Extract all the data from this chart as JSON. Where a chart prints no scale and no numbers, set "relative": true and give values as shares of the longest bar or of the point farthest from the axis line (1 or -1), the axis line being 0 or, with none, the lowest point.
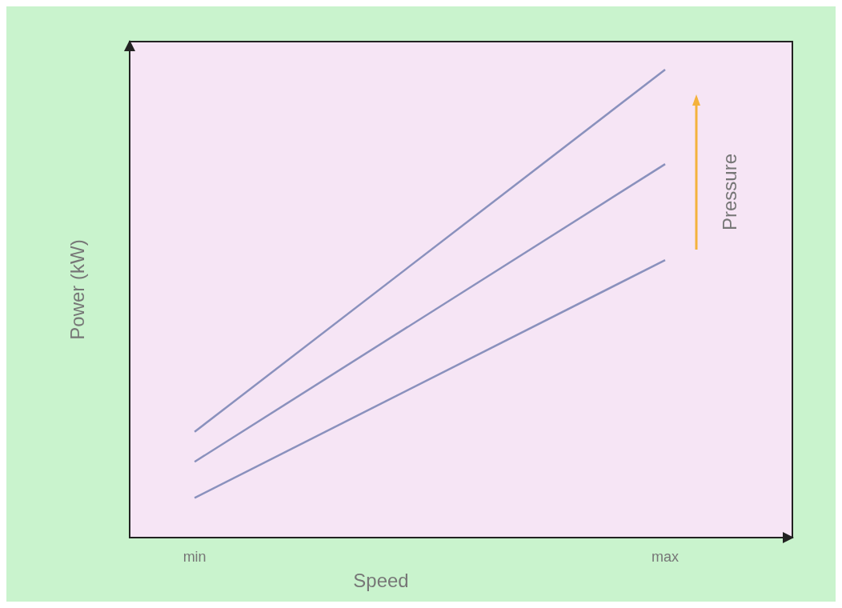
{
  "chart_data": {
    "type": "line",
    "xlabel": "Speed",
    "ylabel": "Power  (kW)",
    "categories": [
      "min",
      "max"
    ],
    "relative": true,
    "grid": false,
    "marker": "none",
    "line_style": "solid",
    "series": [
      {
        "color": "#8a91bd",
        "values": [
          0.226,
          1
        ]
      },
      {
        "color": "#8a91bd",
        "values": [
          0.162,
          0.798
        ]
      },
      {
        "color": "#8a91bd",
        "values": [
          0.085,
          0.593
        ]
      }
    ],
    "annotations": [
      "Pressure"
    ]
  }
}
